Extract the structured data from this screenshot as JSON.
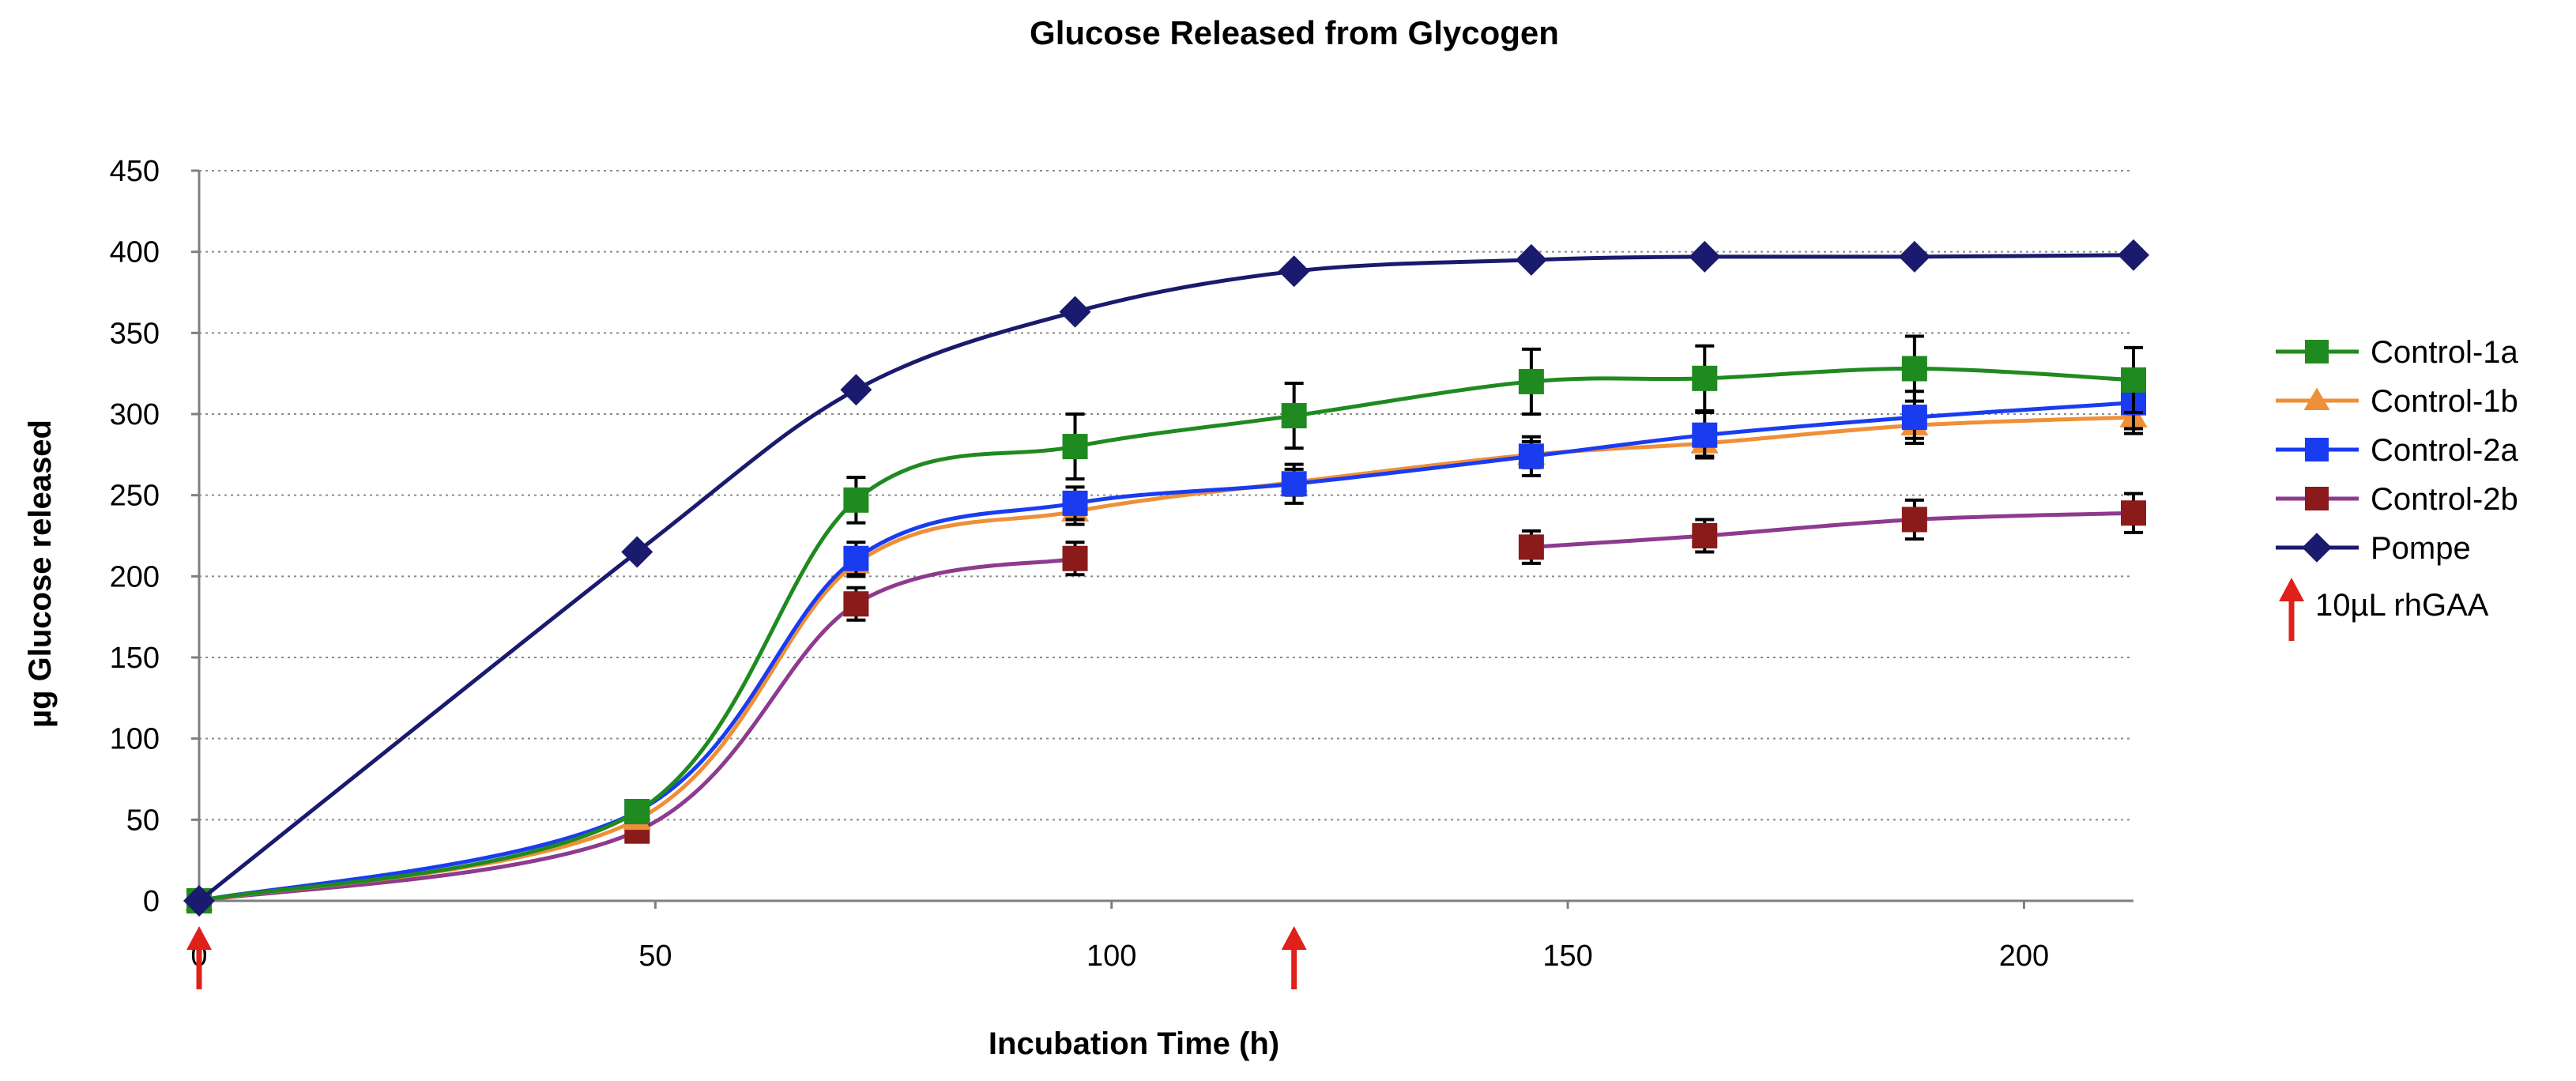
{
  "chart_data": {
    "type": "line",
    "title": "Glucose Released from Glycogen",
    "xlabel": "Incubation Time (h)",
    "ylabel": "µg Glucose released",
    "xlim": [
      0,
      212
    ],
    "ylim": [
      0,
      450
    ],
    "xticks": [
      0,
      50,
      100,
      150,
      200
    ],
    "yticks": [
      0,
      50,
      100,
      150,
      200,
      250,
      300,
      350,
      400,
      450
    ],
    "grid": "horizontal dotted",
    "legend_position": "right",
    "series": [
      {
        "name": "Control-1a",
        "color": "#1f8a1f",
        "marker": "square",
        "x": [
          0,
          48,
          72,
          96,
          120,
          146,
          165,
          188,
          212
        ],
        "y": [
          0,
          55,
          247,
          280,
          299,
          320,
          322,
          328,
          321
        ],
        "err": [
          0,
          0,
          14,
          20,
          20,
          20,
          20,
          20,
          20
        ]
      },
      {
        "name": "Control-1b",
        "color": "#ef8f38",
        "marker": "triangle",
        "x": [
          0,
          48,
          72,
          96,
          120,
          146,
          165,
          188,
          212
        ],
        "y": [
          0,
          50,
          208,
          240,
          258,
          275,
          282,
          293,
          298
        ],
        "err": [
          0,
          0,
          8,
          8,
          8,
          8,
          8,
          8,
          10
        ]
      },
      {
        "name": "Control-2a",
        "color": "#1a3cf0",
        "marker": "square",
        "x": [
          0,
          48,
          72,
          96,
          120,
          146,
          165,
          188,
          212
        ],
        "y": [
          0,
          55,
          211,
          245,
          257,
          274,
          287,
          298,
          307
        ],
        "err": [
          0,
          0,
          10,
          10,
          12,
          12,
          14,
          16,
          16
        ]
      },
      {
        "name": "Control-2b",
        "color": "#8b1a1a",
        "line_color": "#8e3a8e",
        "marker": "square",
        "segments": [
          {
            "x": [
              0,
              48,
              72,
              96
            ],
            "y": [
              0,
              43,
              183,
              211
            ]
          },
          {
            "x": [
              146,
              165,
              188,
              212
            ],
            "y": [
              218,
              225,
              235,
              239
            ]
          }
        ],
        "x": [
          0,
          48,
          72,
          96,
          146,
          165,
          188,
          212
        ],
        "y": [
          0,
          43,
          183,
          211,
          218,
          225,
          235,
          239
        ],
        "err": [
          0,
          0,
          10,
          10,
          10,
          10,
          12,
          12
        ]
      },
      {
        "name": "Pompe",
        "color": "#1a1a6e",
        "marker": "diamond",
        "x": [
          0,
          48,
          72,
          96,
          120,
          146,
          165,
          188,
          212
        ],
        "y": [
          0,
          215,
          315,
          363,
          388,
          395,
          397,
          397,
          398
        ],
        "err": [
          0,
          0,
          0,
          0,
          0,
          0,
          0,
          0,
          0
        ]
      }
    ],
    "annotations": [
      {
        "type": "arrow",
        "x": 0,
        "color": "#e0201a"
      },
      {
        "type": "arrow",
        "x": 120,
        "color": "#e0201a"
      }
    ],
    "arrow_legend": {
      "label": "10µL rhGAA",
      "color": "#e0201a"
    }
  }
}
